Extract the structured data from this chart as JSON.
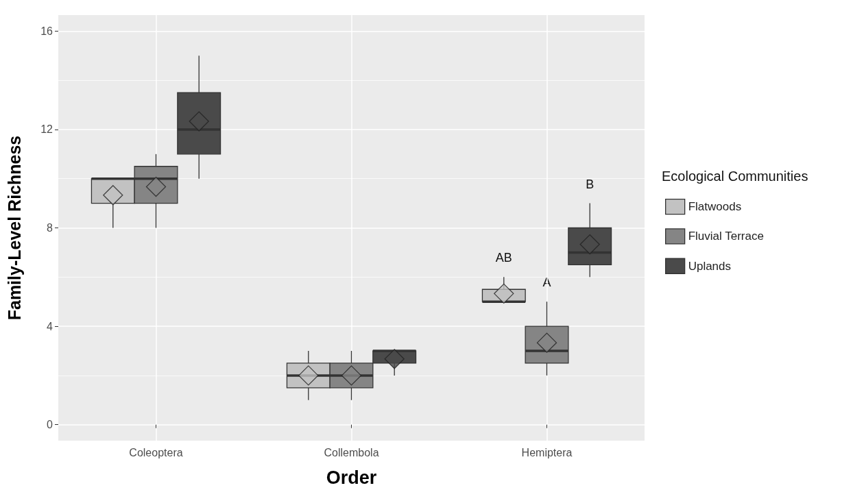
{
  "chart_data": {
    "type": "box",
    "xlabel": "Order",
    "ylabel": "Family-Level Richness",
    "legend_title": "Ecological Communities",
    "categories": [
      "Coleoptera",
      "Collembola",
      "Hemiptera"
    ],
    "series": [
      {
        "name": "Flatwoods",
        "color": "#c2c2c2",
        "boxes": [
          {
            "low": 8,
            "q1": 9,
            "median": 10,
            "q3": 10,
            "high": 10,
            "mean": 9.33
          },
          {
            "low": 1,
            "q1": 1.5,
            "median": 2,
            "q3": 2.5,
            "high": 3,
            "mean": 2
          },
          {
            "low": 5,
            "q1": 5,
            "median": 5,
            "q3": 5.5,
            "high": 6,
            "mean": 5.33
          }
        ]
      },
      {
        "name": "Fluvial Terrace",
        "color": "#858585",
        "boxes": [
          {
            "low": 8,
            "q1": 9,
            "median": 10,
            "q3": 10.5,
            "high": 11,
            "mean": 9.67
          },
          {
            "low": 1,
            "q1": 1.5,
            "median": 2,
            "q3": 2.5,
            "high": 3,
            "mean": 2
          },
          {
            "low": 2,
            "q1": 2.5,
            "median": 3,
            "q3": 4,
            "high": 5,
            "mean": 3.33
          }
        ]
      },
      {
        "name": "Uplands",
        "color": "#4a4a4a",
        "boxes": [
          {
            "low": 10,
            "q1": 11,
            "median": 12,
            "q3": 13.5,
            "high": 15,
            "mean": 12.33
          },
          {
            "low": 2,
            "q1": 2.5,
            "median": 3,
            "q3": 3,
            "high": 3,
            "mean": 2.67
          },
          {
            "low": 6,
            "q1": 6.5,
            "median": 7,
            "q3": 8,
            "high": 9,
            "mean": 7.33
          }
        ]
      }
    ],
    "annotations": [
      "AB",
      "A",
      "B"
    ],
    "ylim": [
      -0.65,
      16.65
    ],
    "yticks": [
      0,
      4,
      8,
      12,
      16
    ],
    "grid": true,
    "legend": "right",
    "marker": "diamond"
  }
}
